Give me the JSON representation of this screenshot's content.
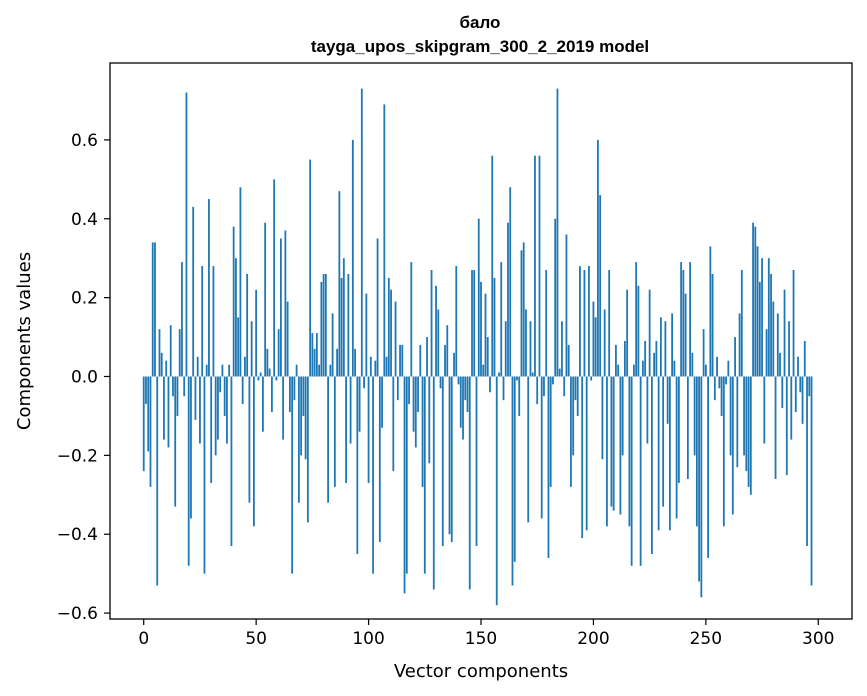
{
  "chart_data": {
    "type": "bar",
    "title_line1": "бало",
    "title_line2": "tayga_upos_skipgram_300_2_2019 model",
    "xlabel": "Vector components",
    "ylabel": "Components values",
    "xlim": [
      -15,
      315
    ],
    "ylim": [
      -0.615,
      0.795
    ],
    "xticks": [
      0,
      50,
      100,
      150,
      200,
      250,
      300
    ],
    "xtick_labels": [
      "0",
      "50",
      "100",
      "150",
      "200",
      "250",
      "300"
    ],
    "yticks": [
      -0.6,
      -0.4,
      -0.2,
      0.0,
      0.2,
      0.4,
      0.6
    ],
    "ytick_labels": [
      "−0.6",
      "−0.4",
      "−0.2",
      "0.0",
      "0.2",
      "0.4",
      "0.6"
    ],
    "grid": false,
    "bar_color": "#1f77b4",
    "x_start": 0,
    "values": [
      -0.24,
      -0.07,
      -0.19,
      -0.28,
      0.34,
      0.34,
      -0.53,
      0.12,
      0.06,
      -0.16,
      0.04,
      -0.18,
      0.13,
      -0.05,
      -0.33,
      -0.1,
      0.12,
      0.29,
      -0.05,
      0.72,
      -0.48,
      -0.36,
      0.43,
      -0.11,
      0.05,
      -0.17,
      0.28,
      -0.5,
      0.03,
      0.45,
      -0.27,
      0.28,
      -0.2,
      -0.16,
      -0.04,
      0.03,
      -0.1,
      -0.17,
      0.03,
      -0.43,
      0.38,
      0.3,
      0.15,
      0.48,
      -0.07,
      0.05,
      0.26,
      -0.32,
      0.14,
      -0.38,
      0.22,
      -0.01,
      0.01,
      -0.14,
      0.39,
      0.07,
      0.02,
      -0.09,
      0.5,
      -0.01,
      0.12,
      0.35,
      -0.16,
      0.37,
      0.19,
      -0.09,
      -0.5,
      -0.06,
      0.03,
      -0.32,
      -0.2,
      -0.1,
      -0.21,
      -0.37,
      0.55,
      0.11,
      0.07,
      0.11,
      0.03,
      0.24,
      0.26,
      0.26,
      -0.32,
      0.03,
      0.16,
      -0.28,
      0.07,
      0.47,
      0.25,
      0.3,
      -0.27,
      0.26,
      -0.17,
      0.6,
      0.07,
      -0.45,
      -0.14,
      0.73,
      -0.03,
      0.21,
      -0.27,
      0.05,
      -0.5,
      0.04,
      0.35,
      -0.42,
      -0.13,
      0.69,
      0.05,
      0.25,
      0.22,
      -0.24,
      0.19,
      -0.06,
      0.08,
      0.08,
      -0.55,
      -0.5,
      -0.07,
      0.29,
      -0.14,
      -0.18,
      -0.09,
      0.08,
      -0.28,
      -0.5,
      0.1,
      -0.22,
      0.27,
      -0.54,
      0.23,
      0.17,
      -0.03,
      -0.43,
      0.08,
      0.13,
      -0.4,
      -0.42,
      0.06,
      0.28,
      -0.02,
      -0.13,
      -0.16,
      -0.06,
      -0.09,
      -0.54,
      0.27,
      0.27,
      -0.43,
      0.4,
      0.24,
      0.03,
      0.21,
      0.1,
      -0.04,
      0.56,
      0.25,
      -0.58,
      0.01,
      0.29,
      -0.06,
      0.14,
      0.39,
      0.48,
      -0.53,
      -0.47,
      -0.01,
      -0.1,
      0.32,
      0.34,
      0.17,
      -0.37,
      0.14,
      0.01,
      0.56,
      -0.07,
      0.56,
      -0.36,
      -0.05,
      0.27,
      -0.46,
      -0.28,
      -0.02,
      0.4,
      0.73,
      0.02,
      0.14,
      -0.05,
      0.36,
      0.08,
      -0.28,
      -0.2,
      -0.06,
      -0.1,
      0.28,
      -0.41,
      0.27,
      -0.39,
      0.28,
      -0.01,
      0.19,
      0.15,
      0.6,
      0.46,
      -0.21,
      0.17,
      -0.38,
      0.27,
      -0.33,
      -0.34,
      0.08,
      0.03,
      -0.35,
      -0.2,
      0.09,
      0.22,
      -0.38,
      -0.48,
      0.03,
      0.29,
      0.23,
      -0.48,
      0.04,
      0.09,
      -0.17,
      0.22,
      -0.45,
      0.06,
      0.09,
      -0.39,
      0.15,
      -0.33,
      0.14,
      -0.12,
      -0.39,
      0.16,
      0.04,
      -0.36,
      -0.27,
      0.29,
      0.27,
      0.21,
      -0.26,
      0.29,
      0.06,
      -0.2,
      -0.38,
      -0.52,
      -0.56,
      0.12,
      0.03,
      -0.46,
      0.33,
      0.26,
      -0.06,
      0.05,
      -0.03,
      -0.1,
      -0.38,
      -0.02,
      0.04,
      -0.2,
      -0.35,
      0.1,
      -0.23,
      0.16,
      0.27,
      -0.2,
      -0.24,
      -0.28,
      -0.3,
      0.39,
      0.38,
      0.33,
      0.24,
      0.3,
      -0.17,
      0.12,
      0.3,
      0.26,
      0.19,
      -0.26,
      0.16,
      0.06,
      -0.08,
      0.22,
      -0.25,
      0.14,
      -0.16,
      0.27,
      -0.09,
      0.05,
      -0.04,
      -0.12,
      0.09,
      -0.43,
      -0.05,
      -0.53
    ]
  }
}
